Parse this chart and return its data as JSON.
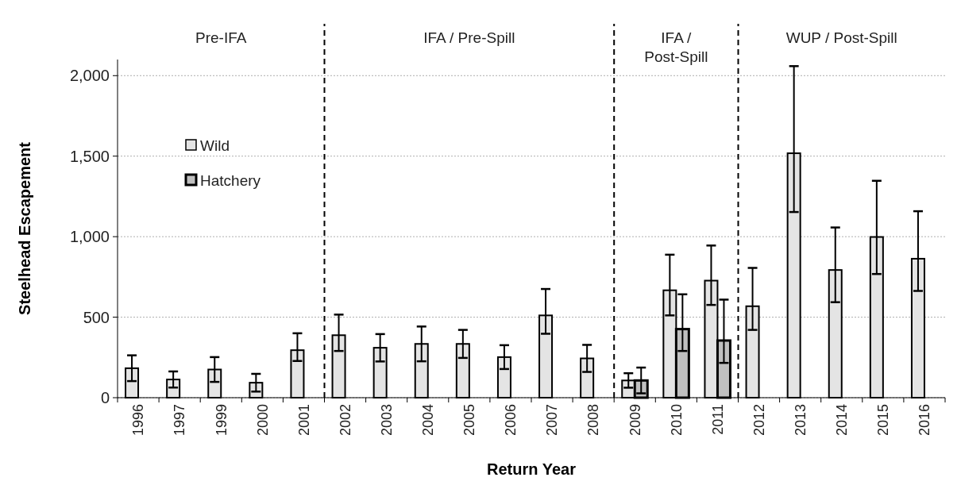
{
  "chart_data": {
    "type": "bar",
    "xlabel": "Return Year",
    "ylabel": "Steelhead Escapement",
    "categories": [
      "1996",
      "1997",
      "1999",
      "2000",
      "2001",
      "2002",
      "2003",
      "2004",
      "2005",
      "2006",
      "2007",
      "2008",
      "2009",
      "2010",
      "2011",
      "2012",
      "2013",
      "2014",
      "2015",
      "2016"
    ],
    "series": [
      {
        "name": "Wild",
        "color": "#e4e4e4",
        "values": [
          183,
          113,
          175,
          93,
          295,
          388,
          310,
          334,
          334,
          252,
          511,
          244,
          107,
          667,
          727,
          568,
          1518,
          793,
          998,
          863
        ],
        "errors": [
          80,
          50,
          77,
          55,
          [
            228,
            400
          ],
          [
            290,
            516
          ],
          85,
          108,
          87,
          74,
          [
            397,
            675
          ],
          84,
          45,
          [
            511,
            888
          ],
          [
            576,
            945
          ],
          [
            421,
            806
          ],
          [
            1153,
            2059
          ],
          [
            593,
            1057
          ],
          [
            768,
            1347
          ],
          [
            663,
            1158
          ]
        ]
      },
      {
        "name": "Hatchery",
        "color": "#c0c0c0",
        "values": [
          0,
          0,
          0,
          0,
          0,
          0,
          0,
          0,
          0,
          0,
          0,
          0,
          107,
          426,
          355,
          0,
          0,
          0,
          0,
          0
        ],
        "errors": [
          null,
          null,
          null,
          null,
          null,
          null,
          null,
          null,
          null,
          null,
          null,
          null,
          80,
          [
            290,
            642
          ],
          [
            216,
            609
          ],
          null,
          null,
          null,
          null,
          null
        ]
      }
    ],
    "ylim": [
      0,
      2100
    ],
    "yticks": [
      0,
      500,
      {
        "value": 1000,
        "label": "1,000"
      },
      {
        "value": 1500,
        "label": "1,500"
      },
      {
        "value": 2000,
        "label": "2,000"
      }
    ],
    "grid": "y",
    "legend": "top left",
    "annotations": [
      "Pre-IFA",
      "IFA / Pre-Spill",
      "IFA / Post-Spill",
      "WUP / Post-Spill"
    ]
  }
}
